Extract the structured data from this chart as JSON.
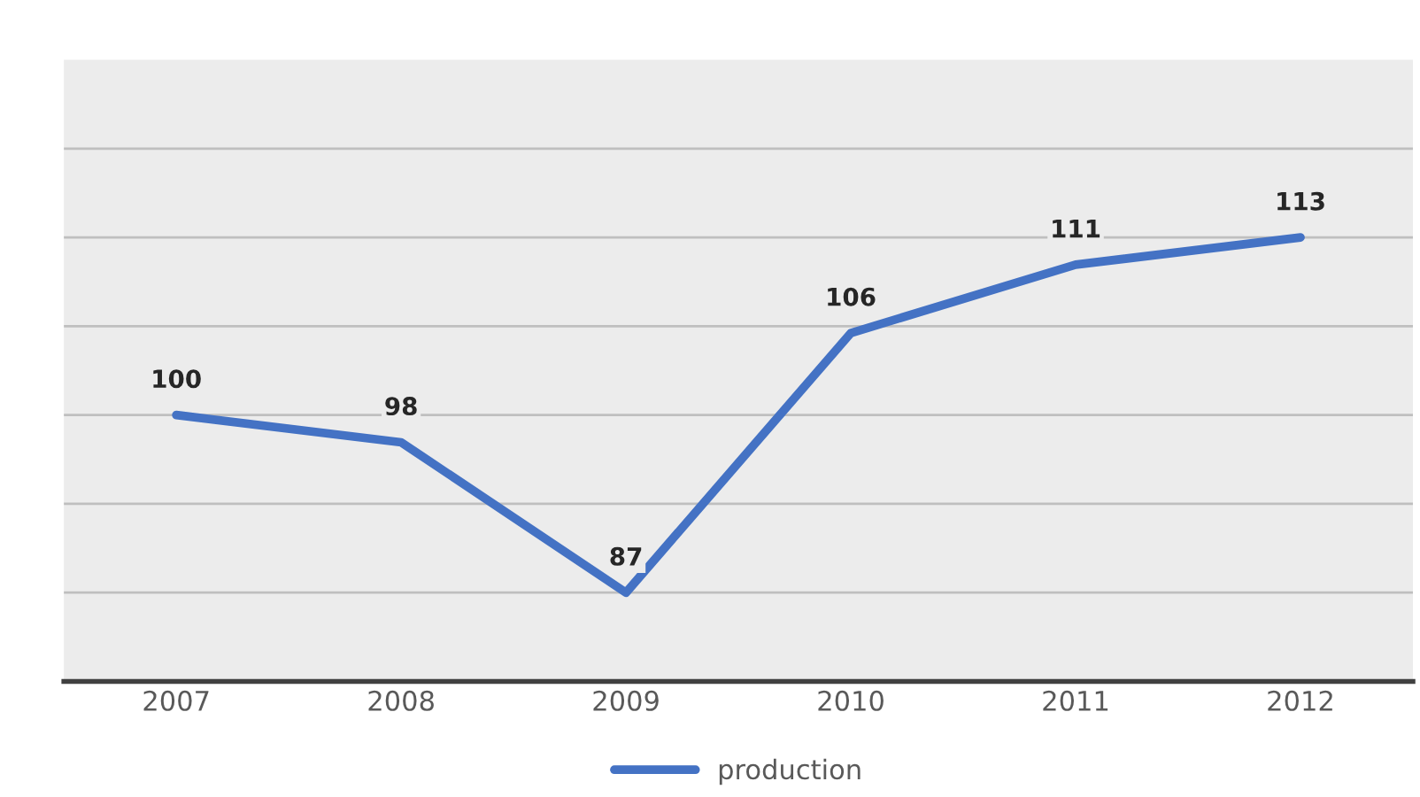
{
  "chart_data": {
    "type": "line",
    "categories": [
      "2007",
      "2008",
      "2009",
      "2010",
      "2011",
      "2012"
    ],
    "series": [
      {
        "name": "production",
        "color": "#4472c4",
        "values": [
          100,
          98,
          87,
          106,
          111,
          113
        ]
      }
    ],
    "ylim": [
      80.5,
      126
    ],
    "yticks": [
      {
        "value": 80.5,
        "label": null
      },
      {
        "value": 87,
        "label": null
      },
      {
        "value": 93.5,
        "label": null
      },
      {
        "value": 100,
        "label": null
      },
      {
        "value": 106.5,
        "label": null
      },
      {
        "value": 113,
        "label": null
      },
      {
        "value": 119.5,
        "label": null
      }
    ],
    "tick_labels": "x",
    "grid": "y",
    "legend": "bottom",
    "data_labels": true,
    "marker": "none",
    "line_style": "solid"
  }
}
